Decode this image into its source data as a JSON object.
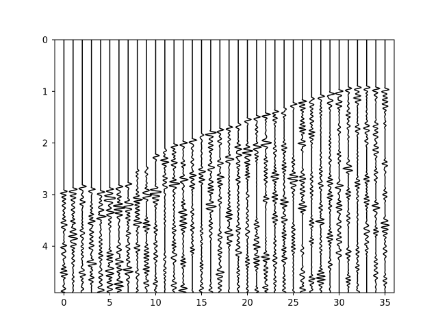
{
  "chart_data": {
    "type": "line",
    "title": "",
    "xlabel": "",
    "ylabel": "",
    "xlim": [
      -1,
      36
    ],
    "ylim": [
      4.9,
      0
    ],
    "y_inverted": true,
    "grid": false,
    "legend": "none",
    "x_ticks": [
      0,
      5,
      10,
      15,
      20,
      25,
      30,
      35
    ],
    "x_tick_labels": [
      "0",
      "5",
      "10",
      "15",
      "20",
      "25",
      "30",
      "35"
    ],
    "y_ticks": [
      0,
      1,
      2,
      3,
      4
    ],
    "y_tick_labels": [
      "0",
      "1",
      "2",
      "3",
      "4"
    ],
    "trace_color": "#000000",
    "trace_count": 36,
    "trace_positions": [
      0,
      1,
      2,
      3,
      4,
      5,
      6,
      7,
      8,
      9,
      10,
      11,
      12,
      13,
      14,
      15,
      16,
      17,
      18,
      19,
      20,
      21,
      22,
      23,
      24,
      25,
      26,
      27,
      28,
      29,
      30,
      31,
      32,
      33,
      34,
      35
    ],
    "first_break_times": [
      2.9,
      2.85,
      2.8,
      2.85,
      2.9,
      2.85,
      2.8,
      2.75,
      2.5,
      2.45,
      2.2,
      2.1,
      2.0,
      1.95,
      1.9,
      1.8,
      1.75,
      1.7,
      1.65,
      1.6,
      1.5,
      1.45,
      1.4,
      1.35,
      1.3,
      1.2,
      1.15,
      1.1,
      1.05,
      1.0,
      0.95,
      0.9,
      0.88,
      0.88,
      0.9,
      0.92
    ],
    "coherent_event": {
      "x": [
        3,
        22
      ],
      "t": [
        3.5,
        2.0
      ]
    }
  }
}
